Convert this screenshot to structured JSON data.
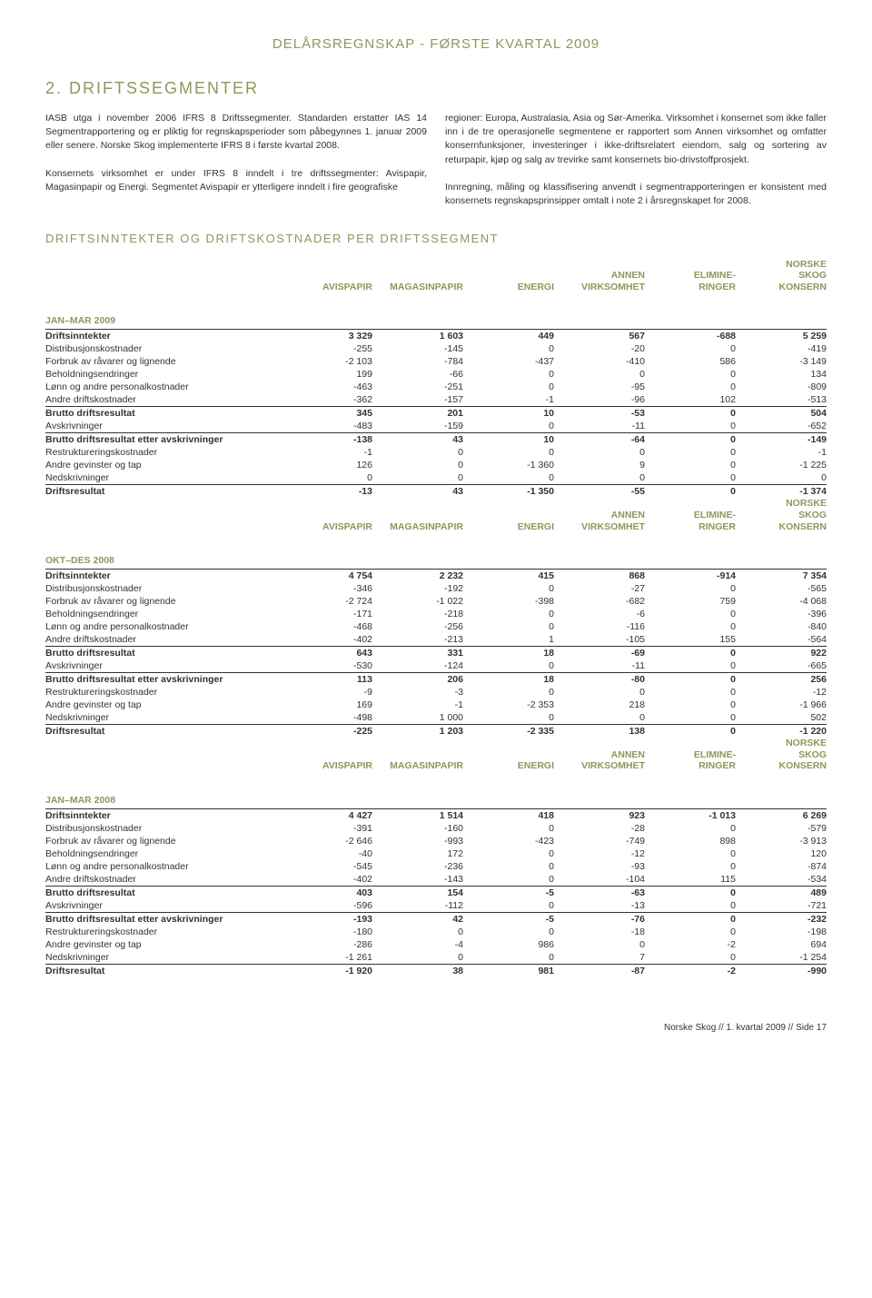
{
  "page_title": "DELÅRSREGNSKAP - FØRSTE KVARTAL 2009",
  "section_heading": "2. DRIFTSSEGMENTER",
  "para_left": "IASB utga i november 2006 IFRS 8 Driftssegmenter. Standarden erstatter IAS 14 Segmentrapportering og er pliktig for regnskapsperioder som påbegynnes 1. januar 2009 eller senere. Norske Skog implementerte IFRS 8 i første kvartal 2008.\n\nKonsernets virksomhet er under IFRS 8 inndelt i tre driftssegmenter: Avispapir, Magasinpapir og Energi. Segmentet Avispapir er ytterligere inndelt i fire geografiske",
  "para_right": "regioner: Europa, Australasia, Asia og Sør-Amerika. Virksomhet i konsernet som ikke faller inn i de tre operasjonelle segmentene er rapportert som Annen virksomhet og omfatter konsernfunksjoner, investeringer i ikke-driftsrelatert eiendom, salg og sortering av returpapir, kjøp og salg av trevirke samt konsernets bio-drivstoffprosjekt.\n\nInnregning, måling og klassifisering anvendt i segmentrapporteringen er konsistent med konsernets regnskapsprinsipper omtalt i note 2 i årsregnskapet for 2008.",
  "subheading": "DRIFTSINNTEKTER OG DRIFTSKOSTNADER PER DRIFTSSEGMENT",
  "columns": [
    "AVISPAPIR",
    "MAGASINPAPIR",
    "ENERGI",
    "ANNEN\nVIRKSOMHET",
    "ELIMINE-\nRINGER",
    "NORSKE\nSKOG\nKONSERN"
  ],
  "row_labels": [
    "Driftsinntekter",
    "Distribusjonskostnader",
    "Forbruk av råvarer og lignende",
    "Beholdningsendringer",
    "Lønn og andre personalkostnader",
    "Andre driftskostnader",
    "Brutto driftsresultat",
    "Avskrivninger",
    "Brutto driftsresultat etter avskrivninger",
    "Restruktureringskostnader",
    "Andre gevinster og tap",
    "Nedskrivninger",
    "Driftsresultat"
  ],
  "tables": [
    {
      "period": "JAN–MAR 2009",
      "rows": [
        [
          "3 329",
          "1 603",
          "449",
          "567",
          "-688",
          "5 259"
        ],
        [
          "-255",
          "-145",
          "0",
          "-20",
          "0",
          "-419"
        ],
        [
          "-2 103",
          "-784",
          "-437",
          "-410",
          "586",
          "-3 149"
        ],
        [
          "199",
          "-66",
          "0",
          "0",
          "0",
          "134"
        ],
        [
          "-463",
          "-251",
          "0",
          "-95",
          "0",
          "-809"
        ],
        [
          "-362",
          "-157",
          "-1",
          "-96",
          "102",
          "-513"
        ],
        [
          "345",
          "201",
          "10",
          "-53",
          "0",
          "504"
        ],
        [
          "-483",
          "-159",
          "0",
          "-11",
          "0",
          "-652"
        ],
        [
          "-138",
          "43",
          "10",
          "-64",
          "0",
          "-149"
        ],
        [
          "-1",
          "0",
          "0",
          "0",
          "0",
          "-1"
        ],
        [
          "126",
          "0",
          "-1 360",
          "9",
          "0",
          "-1 225"
        ],
        [
          "0",
          "0",
          "0",
          "0",
          "0",
          "0"
        ],
        [
          "-13",
          "43",
          "-1 350",
          "-55",
          "0",
          "-1 374"
        ]
      ]
    },
    {
      "period": "OKT–DES 2008",
      "rows": [
        [
          "4 754",
          "2 232",
          "415",
          "868",
          "-914",
          "7 354"
        ],
        [
          "-346",
          "-192",
          "0",
          "-27",
          "0",
          "-565"
        ],
        [
          "-2 724",
          "-1 022",
          "-398",
          "-682",
          "759",
          "-4 068"
        ],
        [
          "-171",
          "-218",
          "0",
          "-6",
          "0",
          "-396"
        ],
        [
          "-468",
          "-256",
          "0",
          "-116",
          "0",
          "-840"
        ],
        [
          "-402",
          "-213",
          "1",
          "-105",
          "155",
          "-564"
        ],
        [
          "643",
          "331",
          "18",
          "-69",
          "0",
          "922"
        ],
        [
          "-530",
          "-124",
          "0",
          "-11",
          "0",
          "-665"
        ],
        [
          "113",
          "206",
          "18",
          "-80",
          "0",
          "256"
        ],
        [
          "-9",
          "-3",
          "0",
          "0",
          "0",
          "-12"
        ],
        [
          "169",
          "-1",
          "-2 353",
          "218",
          "0",
          "-1 966"
        ],
        [
          "-498",
          "1 000",
          "0",
          "0",
          "0",
          "502"
        ],
        [
          "-225",
          "1 203",
          "-2 335",
          "138",
          "0",
          "-1 220"
        ]
      ]
    },
    {
      "period": "JAN–MAR 2008",
      "rows": [
        [
          "4 427",
          "1 514",
          "418",
          "923",
          "-1 013",
          "6 269"
        ],
        [
          "-391",
          "-160",
          "0",
          "-28",
          "0",
          "-579"
        ],
        [
          "-2 646",
          "-993",
          "-423",
          "-749",
          "898",
          "-3 913"
        ],
        [
          "-40",
          "172",
          "0",
          "-12",
          "0",
          "120"
        ],
        [
          "-545",
          "-236",
          "0",
          "-93",
          "0",
          "-874"
        ],
        [
          "-402",
          "-143",
          "0",
          "-104",
          "115",
          "-534"
        ],
        [
          "403",
          "154",
          "-5",
          "-63",
          "0",
          "489"
        ],
        [
          "-596",
          "-112",
          "0",
          "-13",
          "0",
          "-721"
        ],
        [
          "-193",
          "42",
          "-5",
          "-76",
          "0",
          "-232"
        ],
        [
          "-180",
          "0",
          "0",
          "-18",
          "0",
          "-198"
        ],
        [
          "-286",
          "-4",
          "986",
          "0",
          "-2",
          "694"
        ],
        [
          "-1 261",
          "0",
          "0",
          "7",
          "0",
          "-1 254"
        ],
        [
          "-1 920",
          "38",
          "981",
          "-87",
          "-2",
          "-990"
        ]
      ]
    }
  ],
  "bold_rows": [
    0,
    6,
    8,
    12
  ],
  "line_rows": [
    5,
    7,
    11
  ],
  "footer": "Norske Skog // 1. kvartal 2009 // Side 17"
}
